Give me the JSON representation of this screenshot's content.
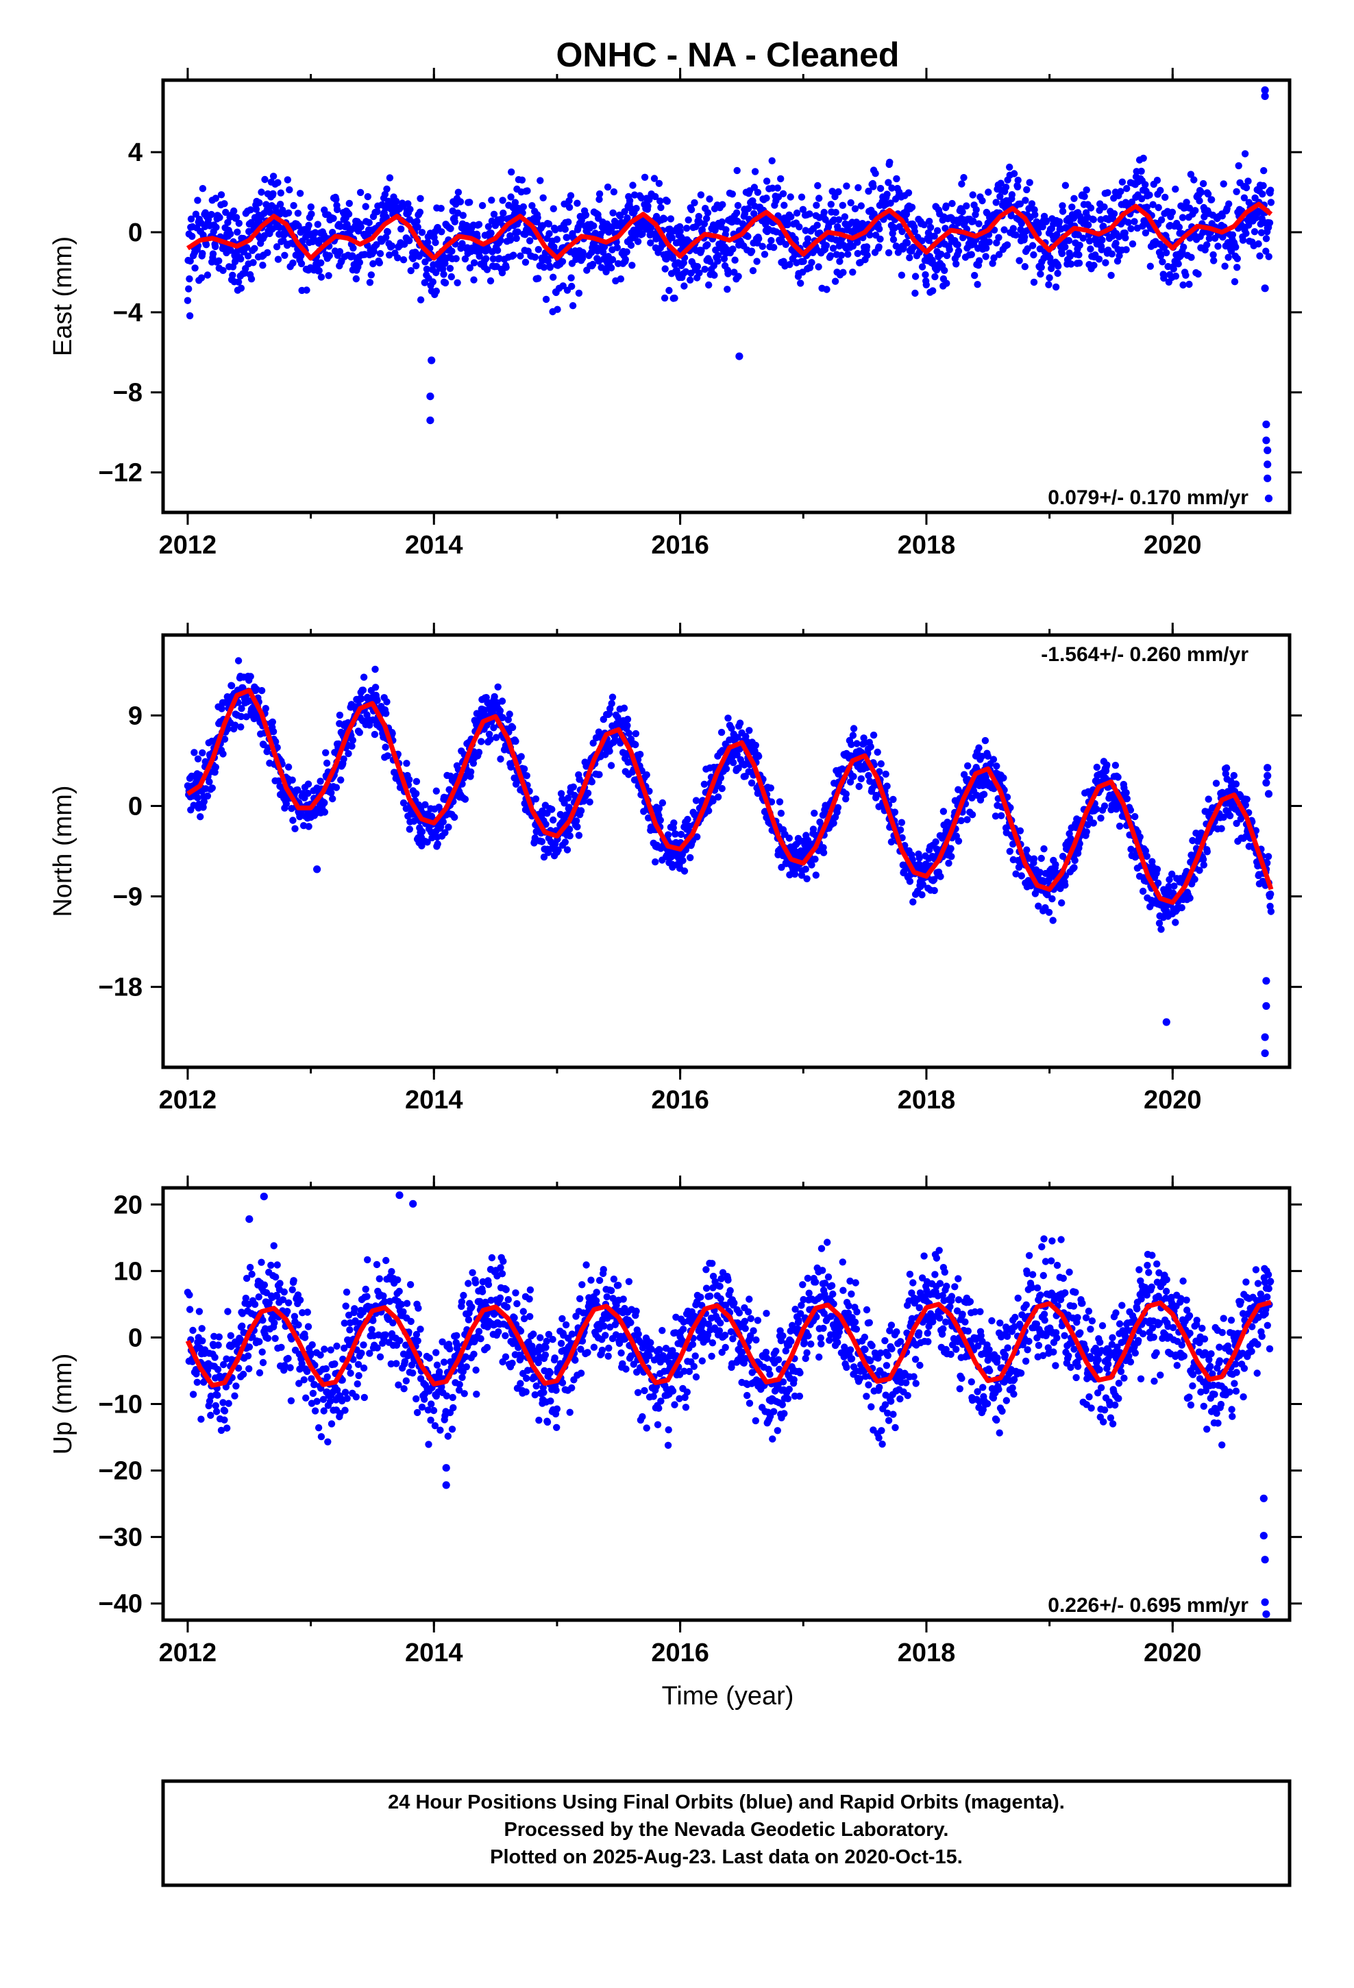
{
  "figure": {
    "title": "ONHC  - NA - Cleaned",
    "xlabel": "Time (year)",
    "footer_lines": [
      "24 Hour Positions Using Final Orbits (blue) and Rapid Orbits (magenta).",
      "Processed by the Nevada Geodetic Laboratory.",
      "Plotted on 2025-Aug-23. Last data on 2020-Oct-15."
    ],
    "colors": {
      "points": "#0000ff",
      "fit": "#ff0000",
      "frame": "#000000"
    }
  },
  "chart_data": [
    {
      "type": "scatter",
      "name": "east",
      "ylabel": "East (mm)",
      "xlim": [
        2011.8,
        2020.95
      ],
      "ylim": [
        -14,
        7.6
      ],
      "xticks": [
        2012,
        2014,
        2016,
        2018,
        2020
      ],
      "yticks": [
        4,
        0,
        -4,
        -8,
        -12
      ],
      "ytick_labels": [
        "4",
        "0",
        "−4",
        "−8",
        "−12"
      ],
      "rate_text": "0.079+/- 0.170 mm/yr",
      "rate_position": "bottom-right",
      "fit": {
        "x": [
          2012.0,
          2012.1,
          2012.2,
          2012.3,
          2012.4,
          2012.5,
          2012.6,
          2012.7,
          2012.8,
          2012.9,
          2013.0,
          2013.1,
          2013.2,
          2013.3,
          2013.4,
          2013.5,
          2013.6,
          2013.7,
          2013.8,
          2013.9,
          2014.0,
          2014.1,
          2014.2,
          2014.3,
          2014.4,
          2014.5,
          2014.6,
          2014.7,
          2014.8,
          2014.9,
          2015.0,
          2015.1,
          2015.2,
          2015.3,
          2015.4,
          2015.5,
          2015.6,
          2015.7,
          2015.8,
          2015.9,
          2016.0,
          2016.1,
          2016.2,
          2016.3,
          2016.4,
          2016.5,
          2016.6,
          2016.7,
          2016.8,
          2016.9,
          2017.0,
          2017.1,
          2017.2,
          2017.3,
          2017.4,
          2017.5,
          2017.6,
          2017.7,
          2017.8,
          2017.9,
          2018.0,
          2018.1,
          2018.2,
          2018.3,
          2018.4,
          2018.5,
          2018.6,
          2018.7,
          2018.8,
          2018.9,
          2019.0,
          2019.1,
          2019.2,
          2019.3,
          2019.4,
          2019.5,
          2019.6,
          2019.7,
          2019.8,
          2019.9,
          2020.0,
          2020.1,
          2020.2,
          2020.3,
          2020.4,
          2020.5,
          2020.6,
          2020.7,
          2020.8
        ],
        "y": [
          -0.8,
          -0.4,
          -0.3,
          -0.5,
          -0.7,
          -0.4,
          0.3,
          0.8,
          0.4,
          -0.6,
          -1.3,
          -0.7,
          -0.2,
          -0.3,
          -0.6,
          -0.3,
          0.4,
          0.8,
          0.3,
          -0.7,
          -1.3,
          -0.7,
          -0.2,
          -0.3,
          -0.6,
          -0.3,
          0.4,
          0.8,
          0.3,
          -0.7,
          -1.3,
          -0.7,
          -0.2,
          -0.3,
          -0.5,
          -0.2,
          0.5,
          0.9,
          0.4,
          -0.6,
          -1.2,
          -0.6,
          -0.1,
          -0.2,
          -0.4,
          -0.1,
          0.6,
          1.0,
          0.5,
          -0.5,
          -1.1,
          -0.5,
          0.0,
          -0.1,
          -0.3,
          0.0,
          0.7,
          1.1,
          0.6,
          -0.4,
          -1.0,
          -0.4,
          0.1,
          0.0,
          -0.2,
          0.1,
          0.8,
          1.2,
          0.7,
          -0.3,
          -0.9,
          -0.3,
          0.2,
          0.1,
          -0.1,
          0.2,
          0.9,
          1.3,
          0.8,
          -0.2,
          -0.8,
          -0.2,
          0.3,
          0.2,
          0.0,
          0.3,
          1.0,
          1.4,
          0.9
        ]
      },
      "outliers": {
        "x": [
          2013.97,
          2013.97,
          2013.98,
          2016.48,
          2020.75,
          2020.75,
          2020.75,
          2020.76,
          2020.76,
          2020.77,
          2020.77,
          2020.77,
          2020.78
        ],
        "y": [
          -9.4,
          -8.2,
          -6.4,
          -6.2,
          7.1,
          6.8,
          -2.8,
          -9.6,
          -10.4,
          -10.9,
          -11.6,
          -12.3,
          -13.3
        ]
      }
    },
    {
      "type": "scatter",
      "name": "north",
      "ylabel": "North (mm)",
      "xlim": [
        2011.8,
        2020.95
      ],
      "ylim": [
        -26,
        17
      ],
      "xticks": [
        2012,
        2014,
        2016,
        2018,
        2020
      ],
      "yticks": [
        9,
        0,
        -9,
        -18
      ],
      "ytick_labels": [
        "9",
        "0",
        "−9",
        "−18"
      ],
      "rate_text": "-1.564+/- 0.260 mm/yr",
      "rate_position": "top-right",
      "fit": {
        "x": [
          2012.0,
          2012.1,
          2012.2,
          2012.3,
          2012.4,
          2012.5,
          2012.6,
          2012.7,
          2012.8,
          2012.9,
          2013.0,
          2013.1,
          2013.2,
          2013.3,
          2013.4,
          2013.5,
          2013.6,
          2013.7,
          2013.8,
          2013.9,
          2014.0,
          2014.1,
          2014.2,
          2014.3,
          2014.4,
          2014.5,
          2014.6,
          2014.7,
          2014.8,
          2014.9,
          2015.0,
          2015.1,
          2015.2,
          2015.3,
          2015.4,
          2015.5,
          2015.6,
          2015.7,
          2015.8,
          2015.9,
          2016.0,
          2016.1,
          2016.2,
          2016.3,
          2016.4,
          2016.5,
          2016.6,
          2016.7,
          2016.8,
          2016.9,
          2017.0,
          2017.1,
          2017.2,
          2017.3,
          2017.4,
          2017.5,
          2017.6,
          2017.7,
          2017.8,
          2017.9,
          2018.0,
          2018.1,
          2018.2,
          2018.3,
          2018.4,
          2018.5,
          2018.6,
          2018.7,
          2018.8,
          2018.9,
          2019.0,
          2019.1,
          2019.2,
          2019.3,
          2019.4,
          2019.5,
          2019.6,
          2019.7,
          2019.8,
          2019.9,
          2020.0,
          2020.1,
          2020.2,
          2020.3,
          2020.4,
          2020.5,
          2020.6,
          2020.7,
          2020.8
        ],
        "y": [
          1.2,
          2.0,
          4.6,
          8.2,
          11.0,
          11.5,
          9.2,
          5.4,
          1.8,
          -0.2,
          -0.2,
          1.4,
          4.0,
          7.3,
          9.7,
          10.2,
          8.0,
          4.3,
          0.7,
          -1.3,
          -1.7,
          -0.2,
          2.5,
          5.8,
          8.4,
          8.9,
          6.7,
          3.1,
          -0.5,
          -2.6,
          -3.0,
          -1.5,
          1.3,
          4.6,
          7.1,
          7.6,
          5.4,
          1.8,
          -1.8,
          -4.0,
          -4.3,
          -2.8,
          0.0,
          3.3,
          5.8,
          6.3,
          4.1,
          0.5,
          -3.1,
          -5.3,
          -5.7,
          -4.1,
          -1.3,
          2.0,
          4.5,
          5.0,
          2.8,
          -0.8,
          -4.4,
          -6.6,
          -7.0,
          -5.4,
          -2.6,
          0.7,
          3.2,
          3.7,
          1.5,
          -2.1,
          -5.7,
          -7.9,
          -8.3,
          -6.7,
          -3.9,
          -0.6,
          1.9,
          2.4,
          0.2,
          -3.4,
          -7.0,
          -9.2,
          -9.6,
          -8.0,
          -5.2,
          -1.9,
          0.6,
          1.1,
          -1.1,
          -4.7,
          -8.3
        ]
      },
      "outliers": {
        "x": [
          2013.05,
          2019.95,
          2020.75,
          2020.75,
          2020.76,
          2020.76,
          2020.76,
          2020.77,
          2020.77,
          2020.78
        ],
        "y": [
          -6.3,
          -21.5,
          -23.0,
          -24.6,
          -19.9,
          -17.4,
          2.3,
          3.0,
          3.8,
          1.2
        ]
      }
    },
    {
      "type": "scatter",
      "name": "up",
      "ylabel": "Up (mm)",
      "xlim": [
        2011.8,
        2020.95
      ],
      "ylim": [
        -42.5,
        22.5
      ],
      "xticks": [
        2012,
        2014,
        2016,
        2018,
        2020
      ],
      "yticks": [
        20,
        10,
        0,
        -10,
        -20,
        -30,
        -40
      ],
      "ytick_labels": [
        "20",
        "10",
        "0",
        "−10",
        "−20",
        "−30",
        "−40"
      ],
      "rate_text": "0.226+/- 0.695 mm/yr",
      "rate_position": "bottom-right",
      "fit": {
        "x": [
          2012.0,
          2012.1,
          2012.2,
          2012.3,
          2012.4,
          2012.5,
          2012.6,
          2012.7,
          2012.8,
          2012.9,
          2013.0,
          2013.1,
          2013.2,
          2013.3,
          2013.4,
          2013.5,
          2013.6,
          2013.7,
          2013.8,
          2013.9,
          2014.0,
          2014.1,
          2014.2,
          2014.3,
          2014.4,
          2014.5,
          2014.6,
          2014.7,
          2014.8,
          2014.9,
          2015.0,
          2015.1,
          2015.2,
          2015.3,
          2015.4,
          2015.5,
          2015.6,
          2015.7,
          2015.8,
          2015.9,
          2016.0,
          2016.1,
          2016.2,
          2016.3,
          2016.4,
          2016.5,
          2016.6,
          2016.7,
          2016.8,
          2016.9,
          2017.0,
          2017.1,
          2017.2,
          2017.3,
          2017.4,
          2017.5,
          2017.6,
          2017.7,
          2017.8,
          2017.9,
          2018.0,
          2018.1,
          2018.2,
          2018.3,
          2018.4,
          2018.5,
          2018.6,
          2018.7,
          2018.8,
          2018.9,
          2019.0,
          2019.1,
          2019.2,
          2019.3,
          2019.4,
          2019.5,
          2019.6,
          2019.7,
          2019.8,
          2019.9,
          2020.0,
          2020.1,
          2020.2,
          2020.3,
          2020.4,
          2020.5,
          2020.6,
          2020.7,
          2020.8
        ],
        "y": [
          -0.5,
          -4.5,
          -7.2,
          -6.8,
          -3.5,
          0.8,
          3.9,
          4.4,
          2.7,
          -0.6,
          -4.4,
          -7.1,
          -6.7,
          -3.4,
          0.9,
          4.0,
          4.5,
          2.8,
          -0.5,
          -4.3,
          -7.0,
          -6.6,
          -3.3,
          1.0,
          4.1,
          4.6,
          2.9,
          -0.4,
          -4.2,
          -6.9,
          -6.5,
          -3.2,
          1.1,
          4.2,
          4.7,
          3.0,
          -0.3,
          -4.1,
          -6.8,
          -6.4,
          -3.1,
          1.2,
          4.3,
          4.8,
          3.1,
          -0.2,
          -4.0,
          -6.7,
          -6.3,
          -3.0,
          1.3,
          4.4,
          4.9,
          3.2,
          -0.1,
          -3.9,
          -6.6,
          -6.2,
          -2.9,
          1.4,
          4.5,
          5.0,
          3.3,
          0.0,
          -3.8,
          -6.5,
          -6.1,
          -2.8,
          1.5,
          4.6,
          5.1,
          3.4,
          0.1,
          -3.7,
          -6.4,
          -6.0,
          -2.7,
          1.6,
          4.7,
          5.2,
          3.5,
          0.2,
          -3.6,
          -6.3,
          -5.9,
          -2.6,
          1.7,
          4.8,
          5.3
        ]
      },
      "outliers": {
        "x": [
          2012.5,
          2012.62,
          2013.72,
          2013.83,
          2014.1,
          2014.1,
          2020.74,
          2020.74,
          2020.75,
          2020.75,
          2020.76
        ],
        "y": [
          17.8,
          21.2,
          21.4,
          20.1,
          -19.6,
          -22.2,
          -24.2,
          -29.8,
          -33.4,
          -39.8,
          -41.6
        ]
      }
    }
  ]
}
